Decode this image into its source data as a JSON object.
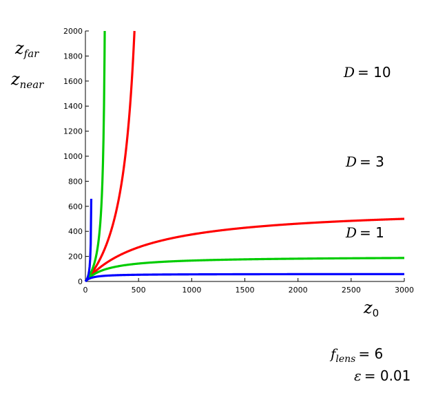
{
  "chart_data": {
    "type": "line",
    "title": "",
    "xlabel": "z",
    "xlabel_sub": "0",
    "ylabel_lines": [
      {
        "main": "z",
        "sub": "far"
      },
      {
        "main": "z",
        "sub": "near"
      }
    ],
    "xlim": [
      0,
      3000
    ],
    "ylim": [
      0,
      2000
    ],
    "x_ticks": [
      0,
      500,
      1000,
      1500,
      2000,
      2500,
      3000
    ],
    "y_ticks": [
      0,
      200,
      400,
      600,
      800,
      1000,
      1200,
      1400,
      1600,
      1800,
      2000
    ],
    "x_tick_labels": [
      "0",
      "500",
      "1000",
      "1500",
      "2000",
      "2500",
      "3000"
    ],
    "y_tick_labels": [
      "0",
      "200",
      "400",
      "600",
      "800",
      "1000",
      "1200",
      "1400",
      "1600",
      "1800",
      "2000"
    ],
    "grid": false,
    "f_lens": 6,
    "epsilon": 0.01,
    "series": [
      {
        "name": "D = 1 near",
        "D": 1,
        "kind": "near",
        "color": "#ff0000"
      },
      {
        "name": "D = 1 far",
        "D": 1,
        "kind": "far",
        "color": "#ff0000"
      },
      {
        "name": "D = 3 near",
        "D": 3,
        "kind": "near",
        "color": "#00cc00"
      },
      {
        "name": "D = 3 far",
        "D": 3,
        "kind": "far",
        "color": "#00cc00"
      },
      {
        "name": "D = 10 near",
        "D": 10,
        "kind": "near",
        "color": "#0000ff"
      },
      {
        "name": "D = 10 far",
        "D": 10,
        "kind": "far",
        "color": "#0000ff"
      }
    ],
    "annotations": [
      {
        "id": "d10",
        "lhs": "D",
        "rhs": "= 10"
      },
      {
        "id": "d3",
        "lhs": "D",
        "rhs": "= 3"
      },
      {
        "id": "d1",
        "lhs": "D",
        "rhs": "= 1"
      }
    ],
    "params": [
      {
        "id": "flens",
        "main": "f",
        "sub": "lens",
        "rhs": "= 6"
      },
      {
        "id": "eps",
        "main": "ε",
        "sub": "",
        "rhs": "= 0.01"
      }
    ]
  }
}
